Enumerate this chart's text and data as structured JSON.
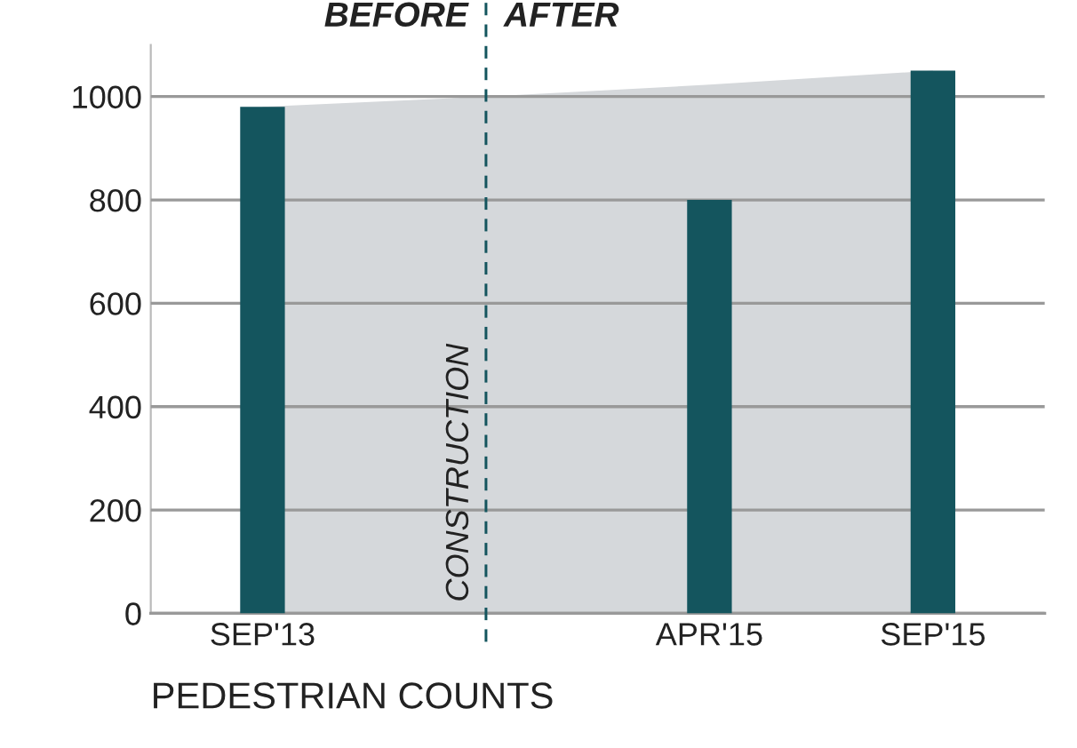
{
  "chart_data": {
    "type": "bar",
    "xlabel": "PEDESTRIAN COUNTS",
    "categories": [
      "SEP'13",
      null,
      "APR'15",
      "SEP'15"
    ],
    "series": [
      {
        "type": "area",
        "color": "#d5d8db",
        "values": [
          980,
          1000,
          1023,
          1050
        ]
      },
      {
        "color": "#14555e",
        "values": [
          980,
          null,
          800,
          1050
        ]
      }
    ],
    "ylim": [
      0,
      1100
    ],
    "yticks": [
      0,
      200,
      400,
      600,
      800,
      1000
    ],
    "grid": "y",
    "annotations": [
      "CONSTRUCTION",
      "BEFORE",
      "AFTER"
    ]
  }
}
